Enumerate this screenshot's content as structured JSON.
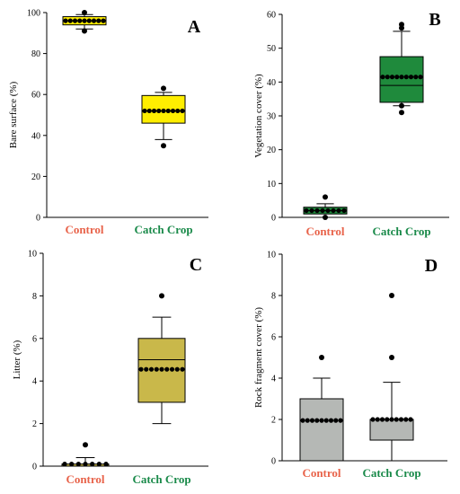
{
  "colors": {
    "control": "#e8634a",
    "catch_crop": "#1a8a4a",
    "dots": "#000000",
    "whisker": "#000000"
  },
  "chart_data": [
    {
      "type": "box",
      "panel_letter": "A",
      "ylabel": "Bare surface (%)",
      "ylim": [
        0,
        100
      ],
      "yticks": [
        "0",
        "20",
        "40",
        "60",
        "80",
        "100"
      ],
      "box_color": "#ffee00",
      "categories": [
        "Control",
        "Catch Crop"
      ],
      "boxes": [
        {
          "name": "Control",
          "min": 92,
          "q1": 94,
          "median": 96,
          "q3": 98,
          "max": 99,
          "mean": 96,
          "outliers": [
            91,
            100
          ],
          "points": [
            96,
            96,
            96,
            96,
            96,
            96,
            96,
            96,
            96
          ]
        },
        {
          "name": "Catch Crop",
          "min": 38,
          "q1": 46,
          "median": 52,
          "q3": 59.5,
          "max": 61,
          "mean": 52,
          "outliers": [
            35,
            63
          ],
          "points": [
            52,
            52,
            52,
            52,
            52,
            52,
            52,
            52,
            52
          ]
        }
      ]
    },
    {
      "type": "box",
      "panel_letter": "B",
      "ylabel": "Vegetation cover (%)",
      "ylim": [
        0,
        60
      ],
      "yticks": [
        "0",
        "10",
        "20",
        "30",
        "40",
        "50",
        "60"
      ],
      "box_color": "#1f8a3c",
      "categories": [
        "Control",
        "Catch Crop"
      ],
      "boxes": [
        {
          "name": "Control",
          "min": 1,
          "q1": 1,
          "median": 2,
          "q3": 3,
          "max": 4,
          "mean": 2,
          "outliers": [
            0,
            6
          ],
          "points": [
            2,
            2,
            2,
            2,
            2,
            2,
            2,
            2
          ]
        },
        {
          "name": "Catch Crop",
          "min": 33,
          "q1": 34,
          "median": 39,
          "q3": 47.5,
          "max": 55,
          "mean": 41.5,
          "outliers": [
            31,
            33,
            56,
            57
          ],
          "points": [
            41.5,
            41.5,
            41.5,
            41.5,
            41.5,
            41.5,
            41.5,
            41.5,
            41.5
          ]
        }
      ]
    },
    {
      "type": "box",
      "panel_letter": "C",
      "ylabel": "Litter (%)",
      "ylim": [
        0,
        10
      ],
      "yticks": [
        "0",
        "2",
        "4",
        "6",
        "8",
        "10"
      ],
      "box_color": "#c9b84a",
      "categories": [
        "Control",
        "Catch Crop"
      ],
      "boxes": [
        {
          "name": "Control",
          "min": 0,
          "q1": 0,
          "median": 0,
          "q3": 0.1,
          "max": 0.4,
          "mean": 0.1,
          "outliers": [
            1
          ],
          "points": [
            0.1,
            0.1,
            0.1,
            0.1,
            0.1,
            0.1,
            0.1
          ]
        },
        {
          "name": "Catch Crop",
          "min": 2,
          "q1": 3,
          "median": 5,
          "q3": 6,
          "max": 7,
          "mean": 4.55,
          "outliers": [
            8
          ],
          "points": [
            4.55,
            4.55,
            4.55,
            4.55,
            4.55,
            4.55,
            4.55,
            4.55,
            4.55
          ]
        }
      ]
    },
    {
      "type": "bar",
      "panel_letter": "D",
      "ylabel": "Rock fragment cover (%)",
      "ylim": [
        0,
        10
      ],
      "yticks": [
        "0",
        "2",
        "4",
        "6",
        "8",
        "10"
      ],
      "box_color": "#b5b8b5",
      "categories": [
        "Control",
        "Catch Crop"
      ],
      "boxes": [
        {
          "name": "Control",
          "min": 0,
          "q1": 0,
          "median": 0,
          "q3": 3,
          "max": 4,
          "mean": 1.95,
          "outliers": [
            5
          ],
          "points": [
            1.95,
            1.95,
            1.95,
            1.95,
            1.95,
            1.95,
            1.95,
            1.95,
            1.95
          ]
        },
        {
          "name": "Catch Crop",
          "min": 0,
          "q1": 1,
          "median": 1,
          "q3": 2,
          "max": 3.8,
          "mean": 2,
          "outliers": [
            5,
            8
          ],
          "points": [
            2,
            2,
            2,
            2,
            2,
            2,
            2,
            2,
            2
          ]
        }
      ]
    }
  ]
}
